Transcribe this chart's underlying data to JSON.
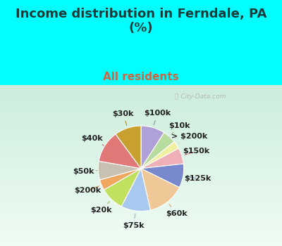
{
  "title": "Income distribution in Ferndale, PA\n(%)",
  "subtitle": "All residents",
  "title_color": "#1a3a3a",
  "subtitle_color": "#cc6644",
  "bg_cyan": "#00ffff",
  "bg_panel_top": "#e8f5f0",
  "bg_panel_bottom": "#d0ede0",
  "watermark": "City-Data.com",
  "labels": [
    "$100k",
    "$10k",
    "> $200k",
    "$150k",
    "$125k",
    "$60k",
    "$75k",
    "$20k",
    "$200k",
    "$50k",
    "$40k",
    "$30k"
  ],
  "sizes": [
    9,
    5,
    3,
    6,
    9,
    14,
    11,
    9,
    4,
    7,
    12,
    10
  ],
  "colors": [
    "#b0a0d8",
    "#b8dca0",
    "#f0f0a0",
    "#f0b0b8",
    "#7888cc",
    "#f0c898",
    "#a8c8f0",
    "#c0e060",
    "#f0a860",
    "#c8c0b0",
    "#e07878",
    "#c8a030"
  ],
  "startangle": 90,
  "label_fontsize": 8,
  "figsize": [
    4.0,
    3.5
  ],
  "dpi": 100,
  "title_fontsize": 13,
  "subtitle_fontsize": 11
}
